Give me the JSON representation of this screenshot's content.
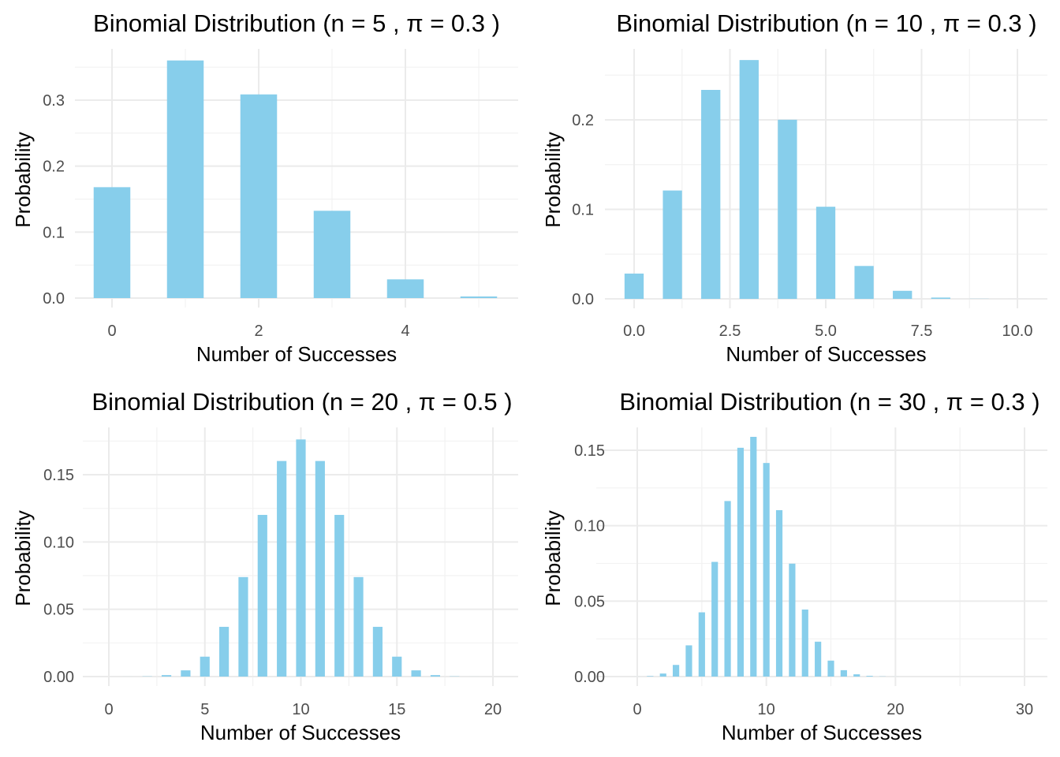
{
  "chart_data": [
    {
      "type": "bar",
      "title": "Binomial Distribution (n = 5 , π = 0.3 )",
      "xlabel": "Number of Successes",
      "ylabel": "Probability",
      "n": 5,
      "p": 0.3,
      "x": [
        0,
        1,
        2,
        3,
        4,
        5
      ],
      "values": [
        0.16807,
        0.36015,
        0.3087,
        0.1323,
        0.02835,
        0.00243
      ],
      "xlim": [
        -0.5,
        5.5
      ],
      "ylim": [
        0,
        0.36
      ],
      "xticks": [
        0,
        2,
        4
      ],
      "xtick_labels": [
        "0",
        "2",
        "4"
      ],
      "yticks": [
        0,
        0.1,
        0.2,
        0.3
      ],
      "ytick_labels": [
        "0.0",
        "0.1",
        "0.2",
        "0.3"
      ],
      "grid": true
    },
    {
      "type": "bar",
      "title": "Binomial Distribution (n = 10 , π = 0.3 )",
      "xlabel": "Number of Successes",
      "ylabel": "Probability",
      "n": 10,
      "p": 0.3,
      "x": [
        0,
        1,
        2,
        3,
        4,
        5,
        6,
        7,
        8,
        9,
        10
      ],
      "values": [
        0.02825,
        0.12106,
        0.23347,
        0.26683,
        0.20012,
        0.10292,
        0.03676,
        0.009,
        0.00145,
        0.00014,
        1e-05
      ],
      "xlim": [
        -0.5,
        10.5
      ],
      "ylim": [
        0,
        0.267
      ],
      "xticks": [
        0,
        2.5,
        5,
        7.5,
        10
      ],
      "xtick_labels": [
        "0.0",
        "2.5",
        "5.0",
        "7.5",
        "10.0"
      ],
      "yticks": [
        0,
        0.1,
        0.2
      ],
      "ytick_labels": [
        "0.0",
        "0.1",
        "0.2"
      ],
      "grid": true
    },
    {
      "type": "bar",
      "title": "Binomial Distribution (n = 20 , π = 0.5 )",
      "xlabel": "Number of Successes",
      "ylabel": "Probability",
      "n": 20,
      "p": 0.5,
      "x": [
        0,
        1,
        2,
        3,
        4,
        5,
        6,
        7,
        8,
        9,
        10,
        11,
        12,
        13,
        14,
        15,
        16,
        17,
        18,
        19,
        20
      ],
      "values": [
        1e-06,
        1.9e-05,
        0.00018,
        0.00109,
        0.00462,
        0.01479,
        0.03696,
        0.07393,
        0.12013,
        0.16018,
        0.1762,
        0.16018,
        0.12013,
        0.07393,
        0.03696,
        0.01479,
        0.00462,
        0.00109,
        0.00018,
        1.9e-05,
        1e-06
      ],
      "xlim": [
        -0.5,
        20.5
      ],
      "ylim": [
        0,
        0.176
      ],
      "xticks": [
        0,
        5,
        10,
        15,
        20
      ],
      "xtick_labels": [
        "0",
        "5",
        "10",
        "15",
        "20"
      ],
      "yticks": [
        0,
        0.05,
        0.1,
        0.15
      ],
      "ytick_labels": [
        "0.00",
        "0.05",
        "0.10",
        "0.15"
      ],
      "grid": true
    },
    {
      "type": "bar",
      "title": "Binomial Distribution (n = 30 , π = 0.3 )",
      "xlabel": "Number of Successes",
      "ylabel": "Probability",
      "n": 30,
      "p": 0.3,
      "x": [
        0,
        1,
        2,
        3,
        4,
        5,
        6,
        7,
        8,
        9,
        10,
        11,
        12,
        13,
        14,
        15,
        16,
        17,
        18,
        19,
        20,
        21,
        22,
        23,
        24,
        25,
        26,
        27,
        28,
        29,
        30
      ],
      "values": [
        2e-05,
        0.00033,
        0.00201,
        0.00772,
        0.02069,
        0.04257,
        0.07601,
        0.11634,
        0.15165,
        0.15889,
        0.14156,
        0.1103,
        0.07485,
        0.04442,
        0.02312,
        0.01057,
        0.00424,
        0.0015,
        0.00046,
        0.00012,
        3e-05,
        6e-06,
        1e-06,
        0,
        0,
        0,
        0,
        0,
        0,
        0,
        0
      ],
      "xlim": [
        -0.5,
        30.5
      ],
      "ylim": [
        0,
        0.159
      ],
      "xticks": [
        0,
        10,
        20,
        30
      ],
      "xtick_labels": [
        "0",
        "10",
        "20",
        "30"
      ],
      "yticks": [
        0,
        0.05,
        0.1,
        0.15
      ],
      "ytick_labels": [
        "0.00",
        "0.05",
        "0.10",
        "0.15"
      ],
      "grid": true
    }
  ],
  "colors": {
    "bar": "#87CEEB",
    "grid": "#EBEBEB",
    "tick_text": "#4D4D4D"
  }
}
